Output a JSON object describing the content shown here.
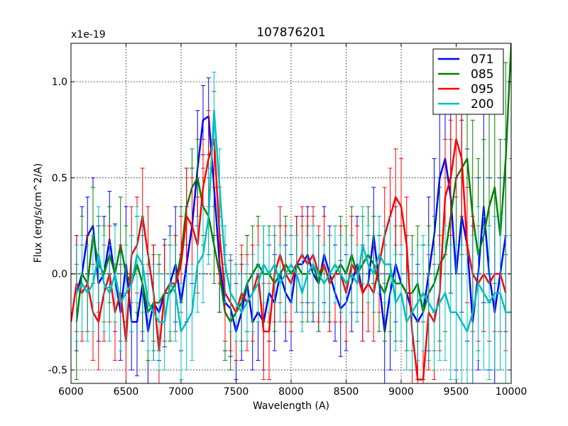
{
  "chart_data": {
    "type": "line",
    "title": "107876201",
    "xlabel": "Wavelength (A)",
    "ylabel": "Flux (erg/s/cm^2/A)",
    "y_scale_label": "x1e-19",
    "xlim": [
      6000,
      10000
    ],
    "ylim": [
      -0.57,
      1.2
    ],
    "xticks": [
      6000,
      6500,
      7000,
      7500,
      8000,
      8500,
      9000,
      9500,
      10000
    ],
    "xtick_labels": [
      "6000",
      "6500",
      "7000",
      "7500",
      "8000",
      "8500",
      "9000",
      "9500",
      "10000"
    ],
    "yticks": [
      -0.5,
      0.0,
      0.5,
      1.0
    ],
    "ytick_labels": [
      "-0.5",
      "0.0",
      "0.5",
      "1.0"
    ],
    "grid": true,
    "legend_position": "top-right",
    "error_bars": true,
    "series": [
      {
        "name": "071",
        "color": "#0000ff",
        "x": [
          6050,
          6100,
          6150,
          6200,
          6250,
          6300,
          6350,
          6400,
          6450,
          6500,
          6550,
          6600,
          6650,
          6700,
          6750,
          6800,
          6850,
          6900,
          6950,
          7000,
          7050,
          7100,
          7150,
          7200,
          7250,
          7300,
          7350,
          7400,
          7450,
          7500,
          7550,
          7600,
          7650,
          7700,
          7750,
          7800,
          7850,
          7900,
          7950,
          8000,
          8050,
          8100,
          8150,
          8200,
          8250,
          8300,
          8350,
          8400,
          8450,
          8500,
          8550,
          8600,
          8650,
          8700,
          8750,
          8800,
          8850,
          8900,
          8950,
          9000,
          9050,
          9100,
          9150,
          9200,
          9250,
          9300,
          9350,
          9400,
          9450,
          9500,
          9550,
          9600,
          9650,
          9700,
          9750,
          9800,
          9850,
          9900,
          9950
        ],
        "y": [
          -0.1,
          0.0,
          0.2,
          0.25,
          -0.05,
          0.0,
          0.18,
          -0.02,
          -0.2,
          0.05,
          -0.25,
          -0.25,
          -0.05,
          -0.3,
          -0.15,
          -0.2,
          -0.1,
          -0.05,
          0.05,
          -0.15,
          0.05,
          0.25,
          0.55,
          0.8,
          0.82,
          0.45,
          0.05,
          -0.15,
          -0.18,
          -0.3,
          -0.2,
          -0.05,
          -0.25,
          -0.2,
          -0.25,
          -0.1,
          -0.15,
          0.0,
          -0.1,
          -0.15,
          0.05,
          0.05,
          0.1,
          0.0,
          -0.05,
          0.1,
          0.0,
          -0.1,
          -0.18,
          -0.15,
          -0.05,
          0.05,
          -0.1,
          -0.05,
          0.2,
          -0.05,
          -0.3,
          -0.1,
          0.05,
          -0.05,
          -0.1,
          -0.2,
          -0.25,
          -0.2,
          0.0,
          0.2,
          0.5,
          0.6,
          0.4,
          0.0,
          0.3,
          0.15,
          -0.25,
          0.0,
          0.35,
          0.0,
          -0.2,
          0.0,
          0.2
        ],
        "err": [
          0.3,
          0.35,
          0.2,
          0.25,
          0.3,
          0.3,
          0.25,
          0.28,
          0.25,
          0.3,
          0.25,
          0.28,
          0.3,
          0.3,
          0.3,
          0.25,
          0.28,
          0.3,
          0.3,
          0.25,
          0.3,
          0.3,
          0.3,
          0.18,
          0.2,
          0.25,
          0.25,
          0.25,
          0.25,
          0.25,
          0.25,
          0.25,
          0.25,
          0.25,
          0.25,
          0.25,
          0.25,
          0.25,
          0.25,
          0.25,
          0.25,
          0.25,
          0.25,
          0.25,
          0.25,
          0.25,
          0.25,
          0.25,
          0.25,
          0.25,
          0.25,
          0.25,
          0.25,
          0.25,
          0.25,
          0.25,
          0.3,
          0.4,
          0.3,
          0.3,
          0.3,
          0.3,
          0.3,
          0.35,
          0.4,
          0.4,
          0.45,
          0.5,
          0.5,
          0.5,
          0.5,
          0.5,
          0.5,
          0.5,
          0.5,
          0.5,
          0.5,
          0.5,
          0.5
        ]
      },
      {
        "name": "085",
        "color": "#008000",
        "x": [
          6050,
          6100,
          6150,
          6200,
          6250,
          6300,
          6350,
          6400,
          6450,
          6500,
          6550,
          6600,
          6650,
          6700,
          6750,
          6800,
          6850,
          6900,
          6950,
          7000,
          7050,
          7100,
          7150,
          7200,
          7250,
          7300,
          7350,
          7400,
          7450,
          7500,
          7550,
          7600,
          7650,
          7700,
          7750,
          7800,
          7850,
          7900,
          7950,
          8000,
          8050,
          8100,
          8150,
          8200,
          8250,
          8300,
          8350,
          8400,
          8450,
          8500,
          8550,
          8600,
          8650,
          8700,
          8750,
          8800,
          8850,
          8900,
          8950,
          9000,
          9050,
          9100,
          9150,
          9200,
          9250,
          9300,
          9350,
          9400,
          9450,
          9500,
          9550,
          9600,
          9650,
          9700,
          9750,
          9800,
          9850,
          9900,
          9950,
          10000
        ],
        "y": [
          -0.25,
          0.0,
          -0.05,
          0.2,
          0.05,
          0.0,
          0.1,
          0.0,
          0.15,
          0.0,
          -0.05,
          0.05,
          -0.05,
          -0.2,
          -0.15,
          -0.15,
          -0.1,
          -0.1,
          -0.05,
          0.1,
          0.35,
          0.45,
          0.5,
          0.35,
          0.3,
          0.15,
          0.0,
          -0.2,
          -0.25,
          -0.2,
          -0.15,
          -0.05,
          0.0,
          0.05,
          0.0,
          0.0,
          -0.05,
          0.0,
          0.05,
          0.0,
          0.05,
          0.0,
          0.0,
          0.05,
          -0.05,
          0.05,
          -0.05,
          0.0,
          0.05,
          0.0,
          0.1,
          0.0,
          0.05,
          0.1,
          0.05,
          -0.05,
          -0.1,
          0.0,
          -0.05,
          -0.05,
          -0.1,
          -0.1,
          -0.05,
          -0.2,
          -0.1,
          -0.05,
          0.05,
          0.1,
          0.3,
          0.5,
          0.55,
          0.6,
          0.3,
          0.1,
          0.2,
          0.35,
          0.45,
          0.2,
          0.6,
          1.2
        ],
        "err": [
          0.3,
          0.3,
          0.25,
          0.25,
          0.25,
          0.25,
          0.25,
          0.25,
          0.25,
          0.25,
          0.25,
          0.25,
          0.25,
          0.25,
          0.25,
          0.25,
          0.25,
          0.25,
          0.25,
          0.25,
          0.2,
          0.2,
          0.2,
          0.2,
          0.2,
          0.2,
          0.2,
          0.25,
          0.25,
          0.25,
          0.25,
          0.25,
          0.25,
          0.25,
          0.25,
          0.25,
          0.25,
          0.25,
          0.25,
          0.25,
          0.25,
          0.25,
          0.25,
          0.25,
          0.25,
          0.25,
          0.25,
          0.25,
          0.25,
          0.25,
          0.25,
          0.25,
          0.25,
          0.25,
          0.25,
          0.25,
          0.25,
          0.3,
          0.3,
          0.3,
          0.3,
          0.3,
          0.3,
          0.35,
          0.35,
          0.35,
          0.4,
          0.4,
          0.4,
          0.45,
          0.45,
          0.45,
          0.5,
          0.5,
          0.5,
          0.5,
          0.5,
          0.5,
          0.5,
          0.6
        ]
      },
      {
        "name": "095",
        "color": "#ff0000",
        "x": [
          6000,
          6050,
          6100,
          6150,
          6200,
          6250,
          6300,
          6350,
          6400,
          6450,
          6500,
          6550,
          6600,
          6650,
          6700,
          6750,
          6800,
          6850,
          6900,
          6950,
          7000,
          7050,
          7100,
          7150,
          7200,
          7250,
          7300,
          7350,
          7400,
          7450,
          7500,
          7550,
          7600,
          7650,
          7700,
          7750,
          7800,
          7850,
          7900,
          7950,
          8000,
          8050,
          8100,
          8150,
          8200,
          8250,
          8300,
          8350,
          8400,
          8450,
          8500,
          8550,
          8600,
          8650,
          8700,
          8750,
          8800,
          8850,
          8900,
          8950,
          9000,
          9050,
          9100,
          9150,
          9200,
          9250,
          9300,
          9350,
          9400,
          9450,
          9500,
          9550,
          9600,
          9650,
          9700,
          9750,
          9800,
          9850,
          9900,
          9950
        ],
        "y": [
          -0.25,
          -0.05,
          -0.1,
          -0.05,
          -0.2,
          -0.25,
          -0.1,
          0.0,
          -0.2,
          -0.1,
          -0.35,
          0.1,
          0.15,
          0.3,
          0.1,
          -0.1,
          -0.4,
          -0.1,
          -0.05,
          -0.05,
          0.05,
          0.3,
          0.25,
          0.15,
          0.45,
          0.6,
          0.7,
          0.2,
          -0.1,
          -0.15,
          -0.2,
          -0.1,
          -0.15,
          -0.1,
          0.0,
          -0.3,
          -0.3,
          0.0,
          0.1,
          0.0,
          -0.05,
          0.05,
          0.1,
          0.05,
          0.1,
          0.0,
          0.05,
          -0.05,
          0.0,
          0.0,
          -0.1,
          0.05,
          0.0,
          -0.1,
          -0.05,
          -0.1,
          0.05,
          0.2,
          0.3,
          0.4,
          0.35,
          0.15,
          -0.3,
          -0.55,
          -0.55,
          -0.2,
          -0.25,
          -0.1,
          0.4,
          0.5,
          0.7,
          0.6,
          0.15,
          0.0,
          -0.05,
          0.0,
          -0.05,
          0.0,
          0.0,
          -0.1
        ],
        "err": [
          0.25,
          0.25,
          0.25,
          0.25,
          0.25,
          0.25,
          0.25,
          0.25,
          0.25,
          0.25,
          0.25,
          0.25,
          0.25,
          0.25,
          0.25,
          0.25,
          0.25,
          0.25,
          0.25,
          0.25,
          0.25,
          0.25,
          0.25,
          0.25,
          0.25,
          0.25,
          0.25,
          0.25,
          0.25,
          0.25,
          0.25,
          0.25,
          0.25,
          0.25,
          0.25,
          0.25,
          0.25,
          0.25,
          0.25,
          0.25,
          0.25,
          0.25,
          0.25,
          0.25,
          0.25,
          0.25,
          0.25,
          0.25,
          0.25,
          0.25,
          0.25,
          0.25,
          0.25,
          0.25,
          0.25,
          0.25,
          0.25,
          0.25,
          0.25,
          0.25,
          0.25,
          0.25,
          0.3,
          0.3,
          0.3,
          0.3,
          0.3,
          0.3,
          0.3,
          0.3,
          0.3,
          0.3,
          0.3,
          0.3,
          0.3,
          0.3,
          0.3,
          0.3,
          0.3,
          0.3
        ]
      },
      {
        "name": "200",
        "color": "#00bfbf",
        "x": [
          6050,
          6100,
          6150,
          6200,
          6250,
          6300,
          6350,
          6400,
          6450,
          6500,
          6550,
          6600,
          6650,
          6700,
          6750,
          6800,
          6850,
          6900,
          6950,
          7000,
          7050,
          7100,
          7150,
          7200,
          7250,
          7300,
          7350,
          7400,
          7450,
          7500,
          7550,
          7600,
          7650,
          7700,
          7750,
          7800,
          7850,
          7900,
          7950,
          8000,
          8050,
          8100,
          8150,
          8200,
          8250,
          8300,
          8350,
          8400,
          8450,
          8500,
          8550,
          8600,
          8650,
          8700,
          8750,
          8800,
          8850,
          8900,
          8950,
          9000,
          9050,
          9100,
          9150,
          9200,
          9250,
          9300,
          9350,
          9400,
          9450,
          9500,
          9550,
          9600,
          9650,
          9700,
          9750,
          9800,
          9850,
          9900,
          9950,
          10000
        ],
        "y": [
          -0.1,
          -0.05,
          -0.1,
          -0.05,
          0.1,
          -0.05,
          -0.1,
          0.0,
          -0.15,
          -0.1,
          -0.05,
          0.1,
          0.05,
          -0.15,
          -0.2,
          -0.25,
          -0.25,
          -0.05,
          -0.1,
          -0.3,
          -0.25,
          -0.2,
          0.05,
          0.1,
          0.3,
          0.85,
          0.45,
          0.05,
          -0.1,
          -0.15,
          -0.2,
          -0.15,
          -0.1,
          -0.05,
          0.05,
          0.0,
          0.05,
          -0.05,
          0.0,
          0.05,
          0.0,
          -0.1,
          0.0,
          0.05,
          0.0,
          -0.05,
          0.0,
          0.05,
          0.0,
          -0.05,
          0.0,
          -0.05,
          0.15,
          0.05,
          0.0,
          0.1,
          0.05,
          0.05,
          -0.15,
          -0.1,
          -0.25,
          -0.2,
          -0.15,
          -0.1,
          -0.15,
          -0.2,
          -0.15,
          -0.1,
          -0.2,
          -0.2,
          -0.25,
          -0.3,
          -0.2,
          -0.05,
          -0.1,
          -0.15,
          -0.1,
          -0.1,
          -0.2,
          -0.2
        ],
        "err": [
          0.25,
          0.25,
          0.25,
          0.25,
          0.25,
          0.25,
          0.25,
          0.25,
          0.25,
          0.25,
          0.25,
          0.25,
          0.25,
          0.25,
          0.25,
          0.25,
          0.25,
          0.25,
          0.25,
          0.25,
          0.25,
          0.25,
          0.25,
          0.25,
          0.25,
          0.2,
          0.2,
          0.2,
          0.2,
          0.2,
          0.2,
          0.2,
          0.2,
          0.2,
          0.2,
          0.2,
          0.2,
          0.2,
          0.2,
          0.2,
          0.2,
          0.2,
          0.2,
          0.2,
          0.2,
          0.2,
          0.2,
          0.2,
          0.2,
          0.2,
          0.2,
          0.2,
          0.2,
          0.2,
          0.2,
          0.2,
          0.2,
          0.25,
          0.25,
          0.25,
          0.25,
          0.3,
          0.3,
          0.3,
          0.3,
          0.3,
          0.3,
          0.35,
          0.35,
          0.35,
          0.4,
          0.4,
          0.4,
          0.4,
          0.4,
          0.4,
          0.4,
          0.4,
          0.4,
          0.4
        ]
      }
    ]
  }
}
